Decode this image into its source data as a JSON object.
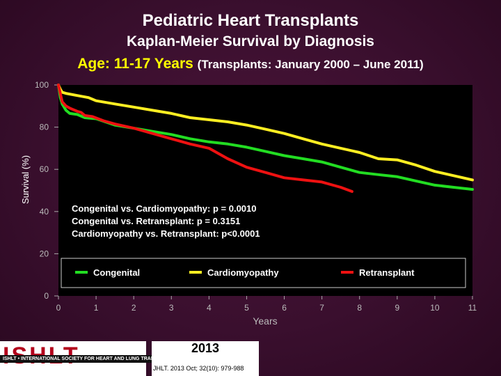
{
  "header": {
    "title": "Pediatric Heart Transplants",
    "subtitle": "Kaplan-Meier Survival by Diagnosis",
    "age_line": "Age: 11-17 Years",
    "transplant_period": "(Transplants: January 2000 – June 2011)"
  },
  "colors": {
    "congenital": "#22dd22",
    "cardiomyopathy": "#ffee22",
    "retransplant": "#ee1111",
    "plot_background": "#000000",
    "title_accent": "#ffff00"
  },
  "chart_data": {
    "type": "line",
    "title": "Kaplan-Meier Survival by Diagnosis",
    "xlabel": "Years",
    "ylabel": "Survival (%)",
    "xlim": [
      0,
      11
    ],
    "ylim": [
      0,
      100
    ],
    "x_ticks": [
      0,
      1,
      2,
      3,
      4,
      5,
      6,
      7,
      8,
      9,
      10,
      11
    ],
    "y_ticks": [
      0,
      20,
      40,
      60,
      80,
      100
    ],
    "grid": false,
    "series": [
      {
        "name": "Congenital",
        "color": "#22dd22",
        "x": [
          0,
          0.05,
          0.1,
          0.2,
          0.3,
          0.5,
          0.7,
          1,
          1.5,
          2,
          2.5,
          3,
          3.5,
          4,
          4.5,
          5,
          5.5,
          6,
          6.5,
          7,
          7.5,
          8,
          8.5,
          9,
          9.5,
          10,
          10.5,
          11
        ],
        "y": [
          100,
          94,
          91,
          88,
          86.5,
          86,
          84.5,
          84,
          81,
          79.5,
          78,
          76.5,
          74.5,
          73,
          72,
          70.5,
          68.5,
          66.5,
          65,
          63.5,
          61,
          58.5,
          57.5,
          56.5,
          54.5,
          52.5,
          51.5,
          50.5
        ]
      },
      {
        "name": "Cardiomyopathy",
        "color": "#ffee22",
        "x": [
          0,
          0.05,
          0.1,
          0.2,
          0.5,
          0.8,
          1,
          1.5,
          2,
          2.5,
          3,
          3.5,
          4,
          4.5,
          5,
          5.5,
          6,
          6.5,
          7,
          7.5,
          8,
          8.5,
          9,
          9.5,
          10,
          10.5,
          11
        ],
        "y": [
          100,
          98,
          96.5,
          96,
          95,
          94,
          92.5,
          91,
          89.5,
          88,
          86.5,
          84.5,
          83.5,
          82.5,
          81,
          79,
          77,
          74.5,
          72,
          70,
          68,
          65,
          64.5,
          62,
          59,
          57,
          55
        ]
      },
      {
        "name": "Retransplant",
        "color": "#ee1111",
        "x": [
          0,
          0.1,
          0.2,
          0.3,
          0.5,
          0.6,
          0.7,
          0.9,
          1.2,
          1.5,
          2,
          2.5,
          3,
          3.5,
          4,
          4.5,
          5,
          5.5,
          6,
          6.5,
          7,
          7.5,
          7.8
        ],
        "y": [
          100,
          92,
          90,
          89,
          87.5,
          87,
          85.5,
          85,
          83,
          81.5,
          79.5,
          77,
          74.5,
          72,
          70,
          65,
          61,
          58.5,
          56,
          55,
          54,
          51.5,
          49.5
        ]
      }
    ],
    "annotations": [
      "Congenital vs. Cardiomyopathy: p = 0.0010",
      "Congenital vs. Retransplant: p = 0.3151",
      "Cardiomyopathy vs. Retransplant: p<0.0001"
    ]
  },
  "footer": {
    "logo_text": "ISHLT",
    "society_name": "ISHLT • INTERNATIONAL SOCIETY FOR HEART AND LUNG TRANSPLANTATION",
    "year": "2013",
    "citation": "JHLT. 2013 Oct; 32(10): 979-988"
  }
}
